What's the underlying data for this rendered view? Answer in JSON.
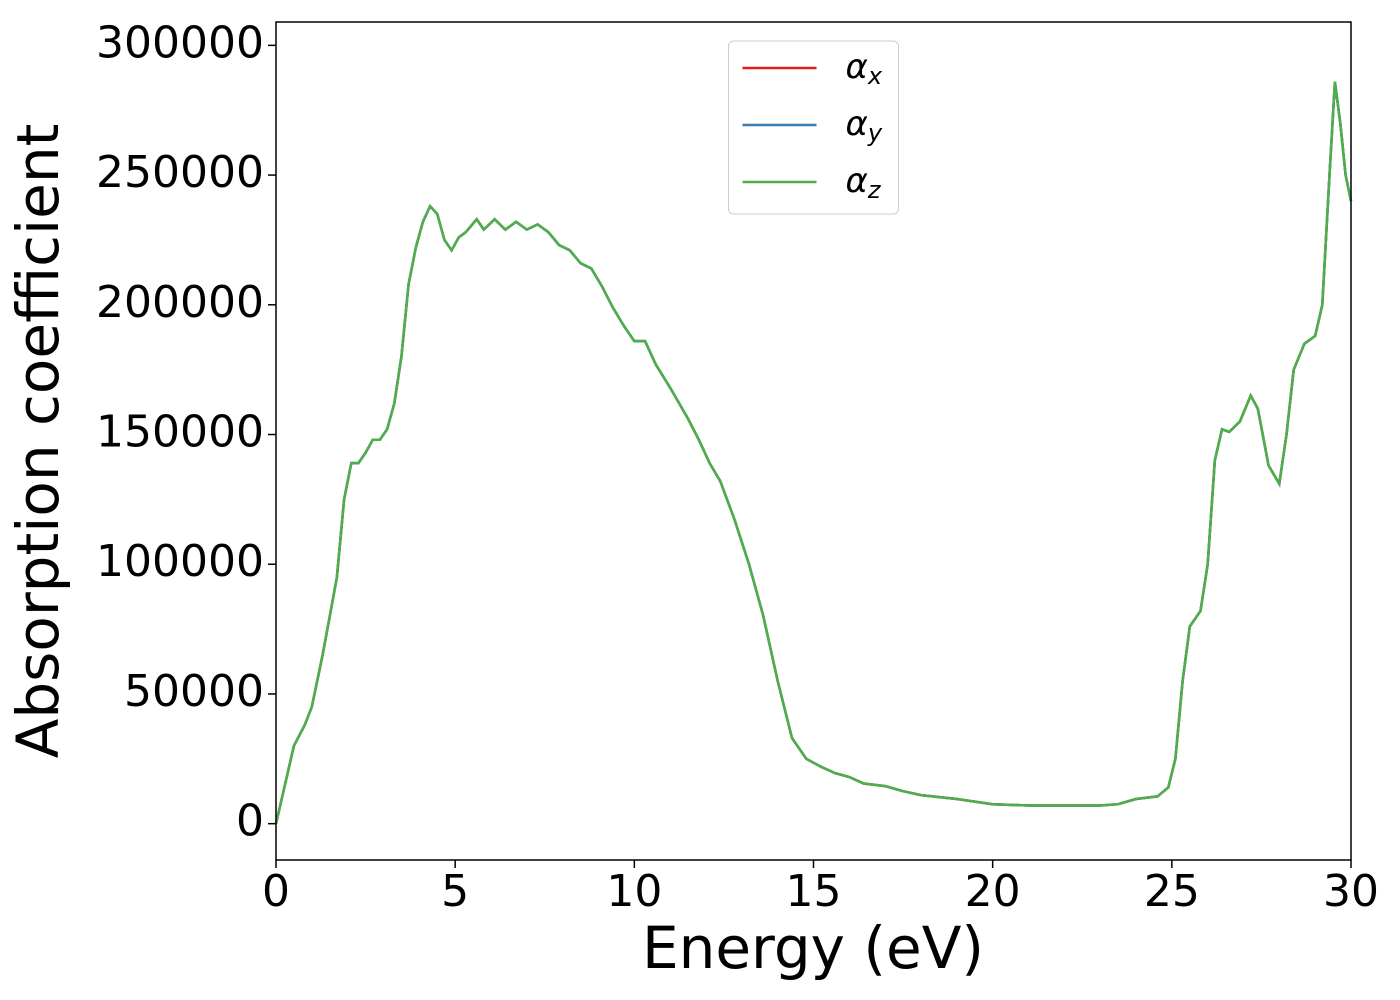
{
  "chart_data": {
    "type": "line",
    "x_label": "Energy (eV)",
    "y_label": "Absorption coefficient",
    "xlim": [
      0,
      30
    ],
    "ylim": [
      -14000,
      309000
    ],
    "xticks": [
      0,
      5,
      10,
      15,
      20,
      25,
      30
    ],
    "yticks": [
      0,
      50000,
      100000,
      150000,
      200000,
      250000,
      300000
    ],
    "legend": "upper center",
    "x": [
      0,
      0.2,
      0.5,
      0.8,
      1.0,
      1.3,
      1.5,
      1.7,
      1.9,
      2.1,
      2.3,
      2.5,
      2.7,
      2.9,
      3.1,
      3.3,
      3.5,
      3.7,
      3.9,
      4.1,
      4.3,
      4.5,
      4.7,
      4.9,
      5.1,
      5.3,
      5.6,
      5.8,
      6.1,
      6.4,
      6.7,
      7.0,
      7.3,
      7.6,
      7.9,
      8.2,
      8.5,
      8.8,
      9.1,
      9.4,
      9.7,
      10.0,
      10.3,
      10.6,
      11.0,
      11.5,
      11.8,
      12.1,
      12.4,
      12.8,
      13.2,
      13.6,
      14.0,
      14.4,
      14.8,
      15.2,
      15.6,
      16.0,
      16.4,
      17.0,
      17.5,
      18.0,
      19.0,
      19.5,
      20.0,
      21.0,
      22.0,
      23.0,
      23.5,
      24.0,
      24.6,
      24.9,
      25.1,
      25.3,
      25.5,
      25.8,
      26.0,
      26.2,
      26.4,
      26.6,
      26.9,
      27.2,
      27.4,
      27.7,
      28.0,
      28.2,
      28.4,
      28.7,
      29.0,
      29.2,
      29.4,
      29.55,
      29.7,
      29.85,
      30.0
    ],
    "series": [
      {
        "name": "αx",
        "color": "#e41a1c",
        "values": [
          0,
          12000,
          30000,
          38000,
          45000,
          65000,
          80000,
          95000,
          125000,
          139000,
          139000,
          143000,
          148000,
          148000,
          152000,
          162000,
          180000,
          208000,
          222000,
          232000,
          238000,
          235000,
          225000,
          221000,
          226000,
          228000,
          233000,
          229000,
          233000,
          229000,
          232000,
          229000,
          231000,
          228000,
          223000,
          221000,
          216000,
          214000,
          207000,
          199000,
          192000,
          186000,
          186000,
          177000,
          168000,
          156000,
          148000,
          139000,
          132000,
          117000,
          100000,
          80000,
          55000,
          33000,
          25000,
          22000,
          19500,
          18000,
          15500,
          14500,
          12500,
          11000,
          9500,
          8500,
          7500,
          7000,
          7000,
          7000,
          7500,
          9500,
          10500,
          14000,
          25000,
          55000,
          76000,
          82000,
          100000,
          140000,
          152000,
          151000,
          155000,
          165000,
          160000,
          138000,
          131000,
          150000,
          175000,
          185000,
          188000,
          200000,
          250000,
          286000,
          270000,
          250000,
          240000
        ]
      },
      {
        "name": "αy",
        "color": "#377eb8",
        "values": [
          0,
          12000,
          30000,
          38000,
          45000,
          65000,
          80000,
          95000,
          125000,
          139000,
          139000,
          143000,
          148000,
          148000,
          152000,
          162000,
          180000,
          208000,
          222000,
          232000,
          238000,
          235000,
          225000,
          221000,
          226000,
          228000,
          233000,
          229000,
          233000,
          229000,
          232000,
          229000,
          231000,
          228000,
          223000,
          221000,
          216000,
          214000,
          207000,
          199000,
          192000,
          186000,
          186000,
          177000,
          168000,
          156000,
          148000,
          139000,
          132000,
          117000,
          100000,
          80000,
          55000,
          33000,
          25000,
          22000,
          19500,
          18000,
          15500,
          14500,
          12500,
          11000,
          9500,
          8500,
          7500,
          7000,
          7000,
          7000,
          7500,
          9500,
          10500,
          14000,
          25000,
          55000,
          76000,
          82000,
          100000,
          140000,
          152000,
          151000,
          155000,
          165000,
          160000,
          138000,
          131000,
          150000,
          175000,
          185000,
          188000,
          200000,
          250000,
          286000,
          270000,
          250000,
          240000
        ]
      },
      {
        "name": "αz",
        "color": "#4daf4a",
        "values": [
          0,
          12000,
          30000,
          38000,
          45000,
          65000,
          80000,
          95000,
          125000,
          139000,
          139000,
          143000,
          148000,
          148000,
          152000,
          162000,
          180000,
          208000,
          222000,
          232000,
          238000,
          235000,
          225000,
          221000,
          226000,
          228000,
          233000,
          229000,
          233000,
          229000,
          232000,
          229000,
          231000,
          228000,
          223000,
          221000,
          216000,
          214000,
          207000,
          199000,
          192000,
          186000,
          186000,
          177000,
          168000,
          156000,
          148000,
          139000,
          132000,
          117000,
          100000,
          80000,
          55000,
          33000,
          25000,
          22000,
          19500,
          18000,
          15500,
          14500,
          12500,
          11000,
          9500,
          8500,
          7500,
          7000,
          7000,
          7000,
          7500,
          9500,
          10500,
          14000,
          25000,
          55000,
          76000,
          82000,
          100000,
          140000,
          152000,
          151000,
          155000,
          165000,
          160000,
          138000,
          131000,
          150000,
          175000,
          185000,
          188000,
          200000,
          250000,
          286000,
          270000,
          250000,
          240000
        ]
      }
    ]
  }
}
